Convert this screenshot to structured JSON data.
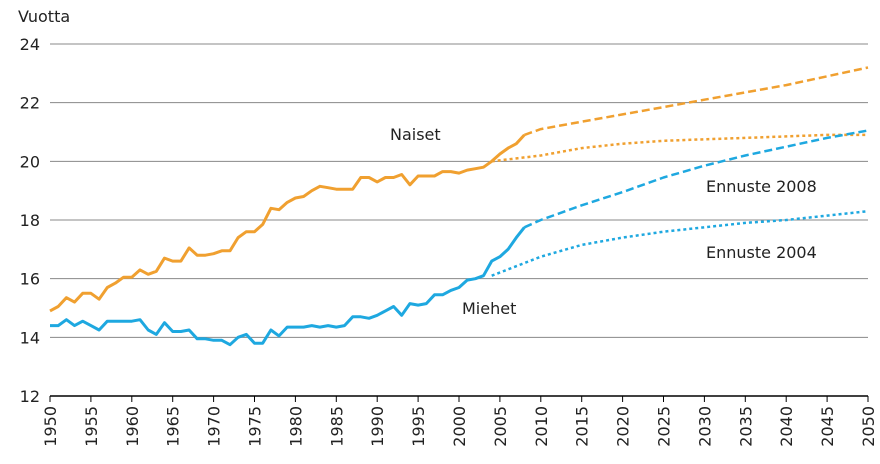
{
  "chart_data": {
    "type": "line",
    "y_label": "Vuotta",
    "annotations": [
      "Naiset",
      "Miehet",
      "Ennuste 2008",
      "Ennuste 2004"
    ],
    "xlim": [
      1950,
      2050
    ],
    "xticks": [
      1950,
      1955,
      1960,
      1965,
      1970,
      1975,
      1980,
      1985,
      1990,
      1995,
      2000,
      2005,
      2010,
      2015,
      2020,
      2025,
      2030,
      2035,
      2040,
      2045,
      2050
    ],
    "ylim": [
      12,
      24
    ],
    "yticks": [
      12,
      14,
      16,
      18,
      20,
      22,
      24
    ],
    "grid": true,
    "series": [
      {
        "color": "#f0a030",
        "style": "solid",
        "x": [
          1950,
          1951,
          1952,
          1953,
          1954,
          1955,
          1956,
          1957,
          1958,
          1959,
          1960,
          1961,
          1962,
          1963,
          1964,
          1965,
          1966,
          1967,
          1968,
          1969,
          1970,
          1971,
          1972,
          1973,
          1974,
          1975,
          1976,
          1977,
          1978,
          1979,
          1980,
          1981,
          1982,
          1983,
          1984,
          1985,
          1986,
          1987,
          1988,
          1989,
          1990,
          1991,
          1992,
          1993,
          1994,
          1995,
          1996,
          1997,
          1998,
          1999,
          2000,
          2001,
          2002,
          2003,
          2004,
          2005,
          2006,
          2007,
          2008
        ],
        "values": [
          14.9,
          15.05,
          15.35,
          15.2,
          15.5,
          15.5,
          15.3,
          15.7,
          15.85,
          16.05,
          16.05,
          16.3,
          16.15,
          16.25,
          16.7,
          16.6,
          16.6,
          17.05,
          16.8,
          16.8,
          16.85,
          16.95,
          16.95,
          17.4,
          17.6,
          17.6,
          17.85,
          18.4,
          18.35,
          18.6,
          18.75,
          18.8,
          19.0,
          19.15,
          19.1,
          19.05,
          19.05,
          19.05,
          19.45,
          19.45,
          19.3,
          19.45,
          19.45,
          19.55,
          19.2,
          19.5,
          19.5,
          19.5,
          19.65,
          19.65,
          19.6,
          19.7,
          19.75,
          19.8,
          20.0,
          20.25,
          20.45,
          20.6,
          20.9
        ]
      },
      {
        "color": "#f0a030",
        "style": "dashed",
        "x": [
          2008,
          2010,
          2015,
          2020,
          2025,
          2030,
          2035,
          2040,
          2045,
          2050
        ],
        "values": [
          20.9,
          21.1,
          21.35,
          21.6,
          21.85,
          22.1,
          22.35,
          22.6,
          22.9,
          23.2
        ]
      },
      {
        "color": "#f0a030",
        "style": "dotted",
        "x": [
          2004,
          2010,
          2015,
          2020,
          2025,
          2030,
          2035,
          2040,
          2045,
          2050
        ],
        "values": [
          20.0,
          20.2,
          20.45,
          20.6,
          20.7,
          20.75,
          20.8,
          20.85,
          20.9,
          20.9
        ]
      },
      {
        "color": "#1ea8e0",
        "style": "solid",
        "x": [
          1950,
          1951,
          1952,
          1953,
          1954,
          1955,
          1956,
          1957,
          1958,
          1959,
          1960,
          1961,
          1962,
          1963,
          1964,
          1965,
          1966,
          1967,
          1968,
          1969,
          1970,
          1971,
          1972,
          1973,
          1974,
          1975,
          1976,
          1977,
          1978,
          1979,
          1980,
          1981,
          1982,
          1983,
          1984,
          1985,
          1986,
          1987,
          1988,
          1989,
          1990,
          1991,
          1992,
          1993,
          1994,
          1995,
          1996,
          1997,
          1998,
          1999,
          2000,
          2001,
          2002,
          2003,
          2004,
          2005,
          2006,
          2007,
          2008
        ],
        "values": [
          14.4,
          14.4,
          14.6,
          14.4,
          14.55,
          14.4,
          14.25,
          14.55,
          14.55,
          14.55,
          14.55,
          14.6,
          14.25,
          14.1,
          14.5,
          14.2,
          14.2,
          14.25,
          13.95,
          13.95,
          13.9,
          13.9,
          13.75,
          14.0,
          14.1,
          13.8,
          13.8,
          14.25,
          14.05,
          14.35,
          14.35,
          14.35,
          14.4,
          14.35,
          14.4,
          14.35,
          14.4,
          14.7,
          14.7,
          14.65,
          14.75,
          14.9,
          15.05,
          14.75,
          15.15,
          15.1,
          15.15,
          15.45,
          15.45,
          15.6,
          15.7,
          15.95,
          16.0,
          16.1,
          16.6,
          16.75,
          17.0,
          17.4,
          17.75
        ]
      },
      {
        "color": "#1ea8e0",
        "style": "dashed",
        "x": [
          2008,
          2010,
          2015,
          2020,
          2025,
          2030,
          2035,
          2040,
          2045,
          2050
        ],
        "values": [
          17.75,
          18.0,
          18.5,
          18.95,
          19.45,
          19.85,
          20.2,
          20.5,
          20.8,
          21.05
        ]
      },
      {
        "color": "#1ea8e0",
        "style": "dotted",
        "x": [
          2004,
          2010,
          2015,
          2020,
          2025,
          2030,
          2035,
          2040,
          2045,
          2050
        ],
        "values": [
          16.1,
          16.75,
          17.15,
          17.4,
          17.6,
          17.75,
          17.9,
          18.0,
          18.15,
          18.3
        ]
      }
    ]
  }
}
